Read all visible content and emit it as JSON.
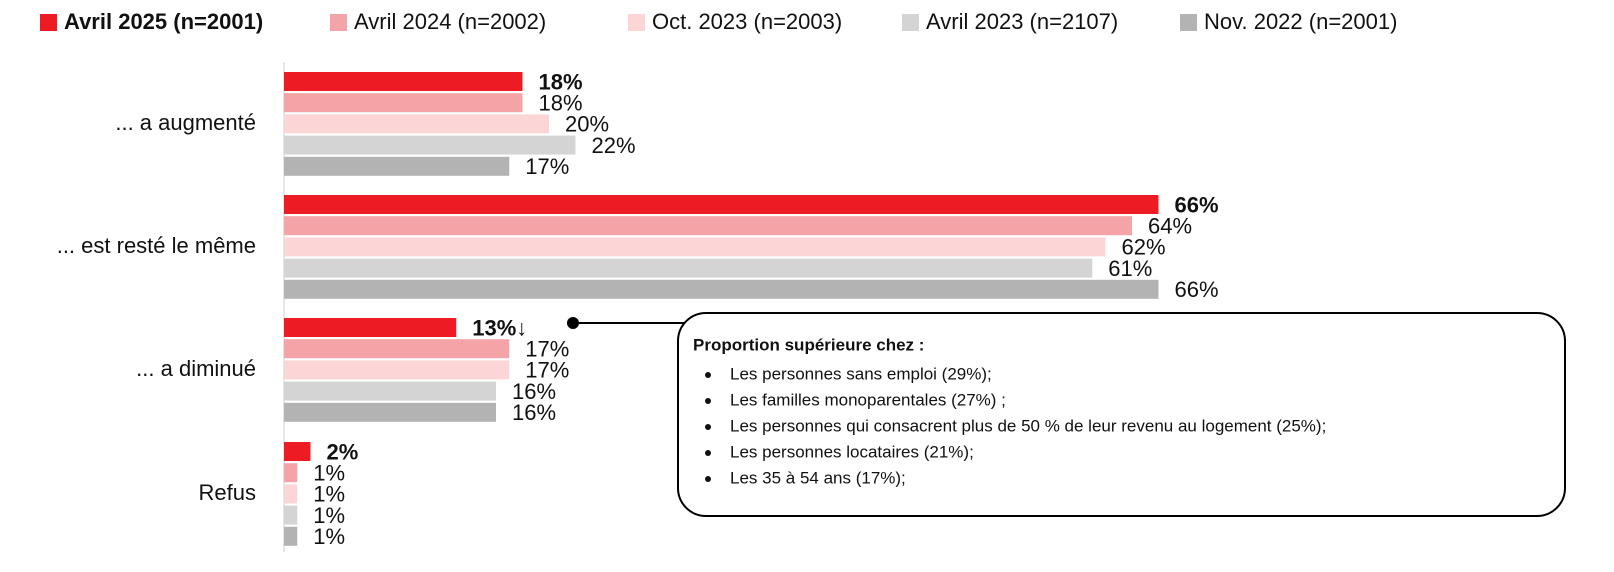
{
  "chart_data": {
    "type": "bar",
    "orientation": "horizontal",
    "categories": [
      "... a augmenté",
      "... est resté le même",
      "... a diminué",
      "Refus"
    ],
    "series": [
      {
        "name": "Avril 2025 (n=2001)",
        "color": "#ed1c24",
        "values": [
          18,
          66,
          13,
          2
        ],
        "value_labels": [
          "18%",
          "66%",
          "13%↓",
          "2%"
        ]
      },
      {
        "name": "Avril 2024 (n=2002)",
        "color": "#f4a4a7",
        "values": [
          18,
          64,
          17,
          1
        ],
        "value_labels": [
          "18%",
          "64%",
          "17%",
          "1%"
        ]
      },
      {
        "name": "Oct. 2023 (n=2003)",
        "color": "#fcd5d6",
        "values": [
          20,
          62,
          17,
          1
        ],
        "value_labels": [
          "20%",
          "62%",
          "17%",
          "1%"
        ]
      },
      {
        "name": "Avril 2023 (n=2107)",
        "color": "#d4d4d4",
        "values": [
          22,
          61,
          16,
          1
        ],
        "value_labels": [
          "22%",
          "61%",
          "16%",
          "1%"
        ]
      },
      {
        "name": "Nov. 2022 (n=2001)",
        "color": "#b3b3b3",
        "values": [
          17,
          66,
          16,
          1
        ],
        "value_labels": [
          "17%",
          "66%",
          "16%",
          "1%"
        ]
      }
    ],
    "legend": "top",
    "callout": {
      "title": "Proportion supérieure chez :",
      "items": [
        "Les personnes sans emploi (29%);",
        "Les familles monoparentales (27%) ;",
        "Les personnes qui consacrent plus de 50 % de leur revenu au logement (25%);",
        "Les personnes locataires (21%);",
        "Les 35 à 54 ans (17%);"
      ]
    }
  }
}
